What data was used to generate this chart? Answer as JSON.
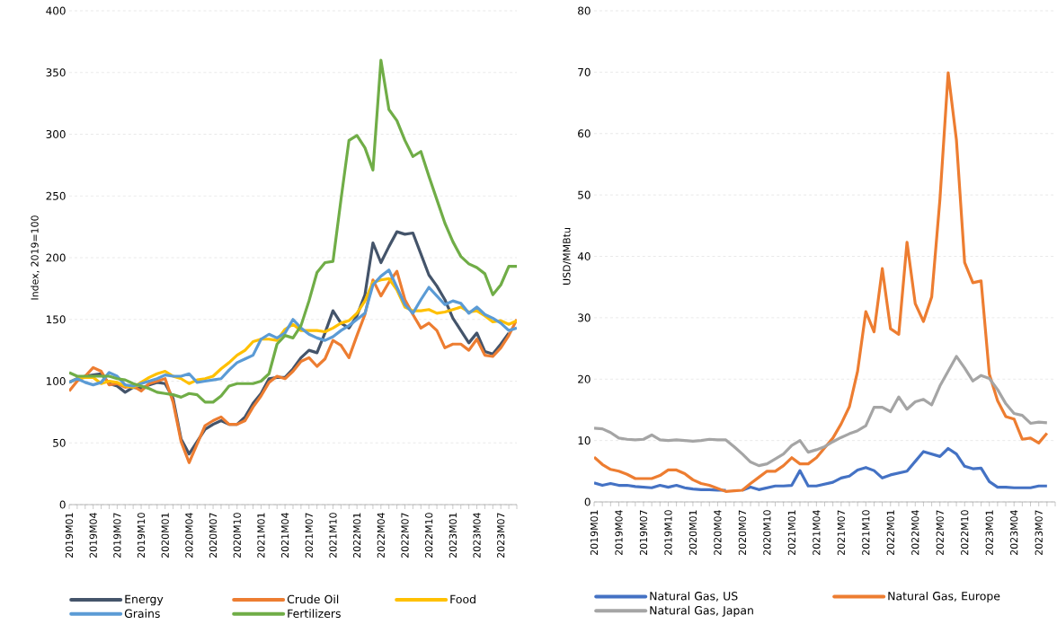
{
  "chart_data": [
    {
      "type": "line",
      "ylabel": "Index, 2019=100",
      "categories": [
        "2019M01",
        null,
        null,
        "2019M04",
        null,
        null,
        "2019M07",
        null,
        null,
        "2019M10",
        null,
        null,
        "2020M01",
        null,
        null,
        "2020M04",
        null,
        null,
        "2020M07",
        null,
        null,
        "2020M10",
        null,
        null,
        "2021M01",
        null,
        null,
        "2021M04",
        null,
        null,
        "2021M07",
        null,
        null,
        "2021M10",
        null,
        null,
        "2022M01",
        null,
        null,
        "2022M04",
        null,
        null,
        "2022M07",
        null,
        null,
        "2022M10",
        null,
        null,
        "2023M01",
        null,
        null,
        "2023M04",
        null,
        null,
        "2023M07",
        null,
        null
      ],
      "ylim": [
        0,
        400
      ],
      "yticks": [
        0,
        50,
        100,
        150,
        200,
        250,
        300,
        350,
        400
      ],
      "grid": "y",
      "legend": "bottom",
      "series": [
        {
          "name": "Energy",
          "color": "#44546a",
          "values": [
            99,
            102,
            104,
            105,
            106,
            98,
            96,
            91,
            95,
            94,
            97,
            99,
            98,
            86,
            53,
            41,
            51,
            61,
            65,
            68,
            65,
            65,
            71,
            82,
            90,
            102,
            103,
            103,
            110,
            119,
            125,
            123,
            139,
            157,
            147,
            143,
            153,
            170,
            212,
            196,
            209,
            221,
            219,
            220,
            203,
            186,
            177,
            166,
            151,
            141,
            131,
            139,
            124,
            122,
            130,
            139,
            null
          ]
        },
        {
          "name": "Crude Oil",
          "color": "#ed7d31",
          "values": [
            92,
            100,
            104,
            111,
            108,
            97,
            98,
            95,
            96,
            92,
            98,
            100,
            102,
            83,
            51,
            34,
            49,
            64,
            68,
            71,
            65,
            65,
            68,
            79,
            88,
            99,
            104,
            102,
            108,
            116,
            119,
            112,
            118,
            133,
            129,
            119,
            137,
            154,
            182,
            169,
            180,
            189,
            166,
            154,
            143,
            147,
            141,
            127,
            130,
            130,
            125,
            134,
            121,
            120,
            127,
            137,
            150
          ]
        },
        {
          "name": "Food",
          "color": "#ffc000",
          "values": [
            99,
            102,
            103,
            103,
            98,
            100,
            99,
            96,
            95,
            99,
            103,
            106,
            108,
            104,
            102,
            98,
            101,
            102,
            104,
            110,
            115,
            121,
            125,
            132,
            134,
            134,
            133,
            142,
            146,
            141,
            141,
            141,
            140,
            143,
            147,
            149,
            155,
            165,
            180,
            182,
            183,
            174,
            160,
            157,
            157,
            158,
            155,
            156,
            158,
            160,
            156,
            157,
            153,
            148,
            149,
            146,
            149
          ]
        },
        {
          "name": "Grains",
          "color": "#5b9bd5",
          "values": [
            99,
            102,
            99,
            97,
            99,
            107,
            104,
            97,
            96,
            98,
            100,
            102,
            105,
            104,
            104,
            106,
            99,
            100,
            101,
            102,
            109,
            115,
            118,
            121,
            134,
            138,
            135,
            139,
            150,
            143,
            138,
            135,
            133,
            136,
            141,
            145,
            150,
            155,
            178,
            185,
            190,
            176,
            162,
            155,
            166,
            176,
            169,
            162,
            165,
            163,
            155,
            160,
            154,
            151,
            147,
            141,
            143
          ]
        },
        {
          "name": "Fertilizers",
          "color": "#70ad47",
          "values": [
            107,
            104,
            104,
            104,
            104,
            104,
            102,
            101,
            98,
            96,
            94,
            91,
            90,
            89,
            87,
            90,
            89,
            83,
            83,
            88,
            96,
            98,
            98,
            98,
            100,
            106,
            130,
            137,
            135,
            145,
            165,
            188,
            196,
            197,
            247,
            295,
            299,
            289,
            271,
            360,
            320,
            311,
            295,
            282,
            286,
            266,
            247,
            228,
            213,
            201,
            195,
            192,
            187,
            170,
            178,
            193,
            193
          ]
        }
      ]
    },
    {
      "type": "line",
      "ylabel": "USD/MMBtu",
      "categories": [
        "2019M01",
        null,
        null,
        "2019M04",
        null,
        null,
        "2019M07",
        null,
        null,
        "2019M10",
        null,
        null,
        "2020M01",
        null,
        null,
        "2020M04",
        null,
        null,
        "2020M07",
        null,
        null,
        "2020M10",
        null,
        null,
        "2021M01",
        null,
        null,
        "2021M04",
        null,
        null,
        "2021M07",
        null,
        null,
        "2021M10",
        null,
        null,
        "2022M01",
        null,
        null,
        "2022M04",
        null,
        null,
        "2022M07",
        null,
        null,
        "2022M10",
        null,
        null,
        "2023M01",
        null,
        null,
        "2023M04",
        null,
        null,
        "2023M07",
        null,
        null
      ],
      "ylim": [
        0,
        80
      ],
      "yticks": [
        0,
        10,
        20,
        30,
        40,
        50,
        60,
        70,
        80
      ],
      "grid": "y",
      "legend": "bottom",
      "series": [
        {
          "name": "Natural Gas, US",
          "color": "#4472c4",
          "values": [
            3.1,
            2.7,
            3.0,
            2.7,
            2.7,
            2.5,
            2.4,
            2.3,
            2.7,
            2.4,
            2.7,
            2.3,
            2.1,
            2.0,
            2.0,
            1.9,
            1.9,
            null,
            1.9,
            2.4,
            2.0,
            2.3,
            2.6,
            2.6,
            2.7,
            5.1,
            2.6,
            2.6,
            2.9,
            3.2,
            3.9,
            4.2,
            5.2,
            5.6,
            5.1,
            3.9,
            4.4,
            4.7,
            5.0,
            6.6,
            8.2,
            7.8,
            7.4,
            8.7,
            7.8,
            5.8,
            5.4,
            5.5,
            3.3,
            2.4,
            2.4,
            2.3,
            2.3,
            2.3,
            2.6,
            2.6,
            null
          ]
        },
        {
          "name": "Natural Gas, Europe",
          "color": "#ed7d31",
          "values": [
            7.3,
            6.1,
            5.3,
            5.0,
            4.5,
            3.8,
            3.8,
            3.8,
            4.3,
            5.2,
            5.2,
            4.6,
            3.6,
            3.0,
            2.7,
            2.2,
            1.7,
            1.8,
            1.9,
            3.0,
            4.0,
            5.0,
            5.0,
            5.9,
            7.2,
            6.2,
            6.2,
            7.2,
            8.8,
            10.4,
            12.7,
            15.5,
            21.3,
            31.0,
            27.7,
            38.0,
            28.2,
            27.3,
            42.3,
            32.3,
            29.4,
            33.4,
            49.3,
            69.9,
            59.0,
            39.0,
            35.7,
            36.0,
            20.8,
            16.5,
            13.9,
            13.5,
            10.2,
            10.4,
            9.6,
            11.2,
            null
          ]
        },
        {
          "name": "Natural Gas, Japan",
          "color": "#a5a5a5",
          "values": [
            12.0,
            11.9,
            11.3,
            10.4,
            10.2,
            10.1,
            10.2,
            10.9,
            10.1,
            10.0,
            10.1,
            10.0,
            9.9,
            10.0,
            10.2,
            10.1,
            10.1,
            9.0,
            7.8,
            6.5,
            5.9,
            6.2,
            7.0,
            7.8,
            9.2,
            10.0,
            8.1,
            8.5,
            9.0,
            9.8,
            10.5,
            11.1,
            11.6,
            12.4,
            15.4,
            15.4,
            14.7,
            17.1,
            15.1,
            16.3,
            16.7,
            15.8,
            18.9,
            21.3,
            23.7,
            21.8,
            19.7,
            20.6,
            20.1,
            18.3,
            16.0,
            14.4,
            14.1,
            12.8,
            13.0,
            12.9,
            null
          ]
        }
      ]
    }
  ]
}
